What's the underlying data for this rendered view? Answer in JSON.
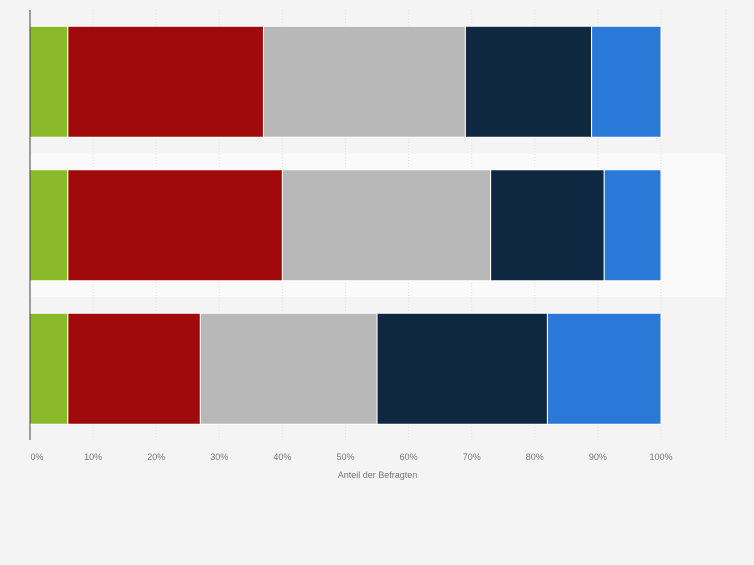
{
  "chart_data": {
    "type": "bar",
    "orientation": "horizontal",
    "stacked": true,
    "categories": [
      "",
      "",
      ""
    ],
    "series": [
      {
        "color": "#8aba2a",
        "values": [
          6,
          6,
          6
        ]
      },
      {
        "color": "#a10a0a",
        "values": [
          31,
          34,
          21
        ]
      },
      {
        "color": "#b8b8b8",
        "values": [
          32,
          33,
          28
        ]
      },
      {
        "color": "#0f2740",
        "values": [
          20,
          18,
          27
        ]
      },
      {
        "color": "#2a78d8",
        "values": [
          11,
          9,
          18
        ]
      }
    ],
    "x_ticks": [
      "0%",
      "10%",
      "20%",
      "30%",
      "40%",
      "50%",
      "60%",
      "70%",
      "80%",
      "90%",
      "100%"
    ],
    "xlim": [
      0,
      100
    ],
    "xlabel": "Anteil der Befragten",
    "ylabel": "",
    "title": "",
    "grid": true,
    "legend": "none"
  },
  "colors": {
    "background": "#f4f4f4",
    "band_highlight": "#fafafa",
    "grid": "#e2e2e2",
    "axis": "#444444",
    "tick_text": "#777777"
  }
}
